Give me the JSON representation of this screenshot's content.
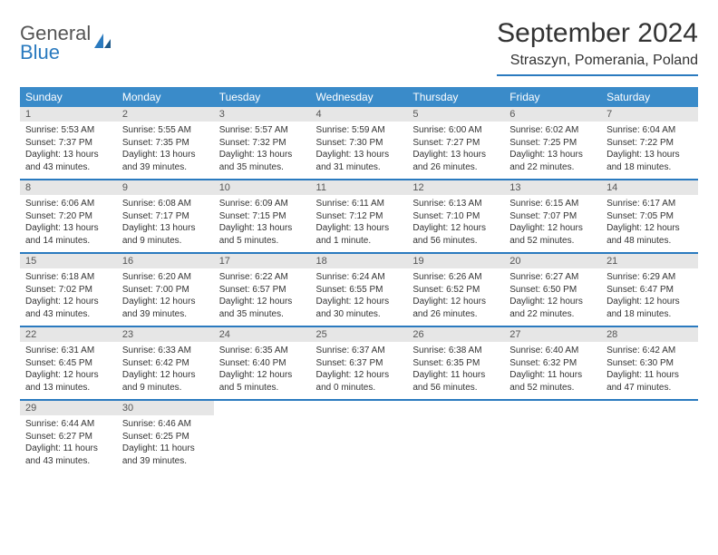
{
  "logo": {
    "general": "General",
    "blue": "Blue"
  },
  "title": "September 2024",
  "location": "Straszyn, Pomerania, Poland",
  "day_headers": [
    "Sunday",
    "Monday",
    "Tuesday",
    "Wednesday",
    "Thursday",
    "Friday",
    "Saturday"
  ],
  "colors": {
    "header_bg": "#3a8bc9",
    "accent": "#2a7abf",
    "daynum_bg": "#e6e6e6",
    "text": "#333333",
    "logo_gray": "#555555"
  },
  "weeks": [
    [
      {
        "day": "1",
        "sunrise": "Sunrise: 5:53 AM",
        "sunset": "Sunset: 7:37 PM",
        "daylight": "Daylight: 13 hours and 43 minutes."
      },
      {
        "day": "2",
        "sunrise": "Sunrise: 5:55 AM",
        "sunset": "Sunset: 7:35 PM",
        "daylight": "Daylight: 13 hours and 39 minutes."
      },
      {
        "day": "3",
        "sunrise": "Sunrise: 5:57 AM",
        "sunset": "Sunset: 7:32 PM",
        "daylight": "Daylight: 13 hours and 35 minutes."
      },
      {
        "day": "4",
        "sunrise": "Sunrise: 5:59 AM",
        "sunset": "Sunset: 7:30 PM",
        "daylight": "Daylight: 13 hours and 31 minutes."
      },
      {
        "day": "5",
        "sunrise": "Sunrise: 6:00 AM",
        "sunset": "Sunset: 7:27 PM",
        "daylight": "Daylight: 13 hours and 26 minutes."
      },
      {
        "day": "6",
        "sunrise": "Sunrise: 6:02 AM",
        "sunset": "Sunset: 7:25 PM",
        "daylight": "Daylight: 13 hours and 22 minutes."
      },
      {
        "day": "7",
        "sunrise": "Sunrise: 6:04 AM",
        "sunset": "Sunset: 7:22 PM",
        "daylight": "Daylight: 13 hours and 18 minutes."
      }
    ],
    [
      {
        "day": "8",
        "sunrise": "Sunrise: 6:06 AM",
        "sunset": "Sunset: 7:20 PM",
        "daylight": "Daylight: 13 hours and 14 minutes."
      },
      {
        "day": "9",
        "sunrise": "Sunrise: 6:08 AM",
        "sunset": "Sunset: 7:17 PM",
        "daylight": "Daylight: 13 hours and 9 minutes."
      },
      {
        "day": "10",
        "sunrise": "Sunrise: 6:09 AM",
        "sunset": "Sunset: 7:15 PM",
        "daylight": "Daylight: 13 hours and 5 minutes."
      },
      {
        "day": "11",
        "sunrise": "Sunrise: 6:11 AM",
        "sunset": "Sunset: 7:12 PM",
        "daylight": "Daylight: 13 hours and 1 minute."
      },
      {
        "day": "12",
        "sunrise": "Sunrise: 6:13 AM",
        "sunset": "Sunset: 7:10 PM",
        "daylight": "Daylight: 12 hours and 56 minutes."
      },
      {
        "day": "13",
        "sunrise": "Sunrise: 6:15 AM",
        "sunset": "Sunset: 7:07 PM",
        "daylight": "Daylight: 12 hours and 52 minutes."
      },
      {
        "day": "14",
        "sunrise": "Sunrise: 6:17 AM",
        "sunset": "Sunset: 7:05 PM",
        "daylight": "Daylight: 12 hours and 48 minutes."
      }
    ],
    [
      {
        "day": "15",
        "sunrise": "Sunrise: 6:18 AM",
        "sunset": "Sunset: 7:02 PM",
        "daylight": "Daylight: 12 hours and 43 minutes."
      },
      {
        "day": "16",
        "sunrise": "Sunrise: 6:20 AM",
        "sunset": "Sunset: 7:00 PM",
        "daylight": "Daylight: 12 hours and 39 minutes."
      },
      {
        "day": "17",
        "sunrise": "Sunrise: 6:22 AM",
        "sunset": "Sunset: 6:57 PM",
        "daylight": "Daylight: 12 hours and 35 minutes."
      },
      {
        "day": "18",
        "sunrise": "Sunrise: 6:24 AM",
        "sunset": "Sunset: 6:55 PM",
        "daylight": "Daylight: 12 hours and 30 minutes."
      },
      {
        "day": "19",
        "sunrise": "Sunrise: 6:26 AM",
        "sunset": "Sunset: 6:52 PM",
        "daylight": "Daylight: 12 hours and 26 minutes."
      },
      {
        "day": "20",
        "sunrise": "Sunrise: 6:27 AM",
        "sunset": "Sunset: 6:50 PM",
        "daylight": "Daylight: 12 hours and 22 minutes."
      },
      {
        "day": "21",
        "sunrise": "Sunrise: 6:29 AM",
        "sunset": "Sunset: 6:47 PM",
        "daylight": "Daylight: 12 hours and 18 minutes."
      }
    ],
    [
      {
        "day": "22",
        "sunrise": "Sunrise: 6:31 AM",
        "sunset": "Sunset: 6:45 PM",
        "daylight": "Daylight: 12 hours and 13 minutes."
      },
      {
        "day": "23",
        "sunrise": "Sunrise: 6:33 AM",
        "sunset": "Sunset: 6:42 PM",
        "daylight": "Daylight: 12 hours and 9 minutes."
      },
      {
        "day": "24",
        "sunrise": "Sunrise: 6:35 AM",
        "sunset": "Sunset: 6:40 PM",
        "daylight": "Daylight: 12 hours and 5 minutes."
      },
      {
        "day": "25",
        "sunrise": "Sunrise: 6:37 AM",
        "sunset": "Sunset: 6:37 PM",
        "daylight": "Daylight: 12 hours and 0 minutes."
      },
      {
        "day": "26",
        "sunrise": "Sunrise: 6:38 AM",
        "sunset": "Sunset: 6:35 PM",
        "daylight": "Daylight: 11 hours and 56 minutes."
      },
      {
        "day": "27",
        "sunrise": "Sunrise: 6:40 AM",
        "sunset": "Sunset: 6:32 PM",
        "daylight": "Daylight: 11 hours and 52 minutes."
      },
      {
        "day": "28",
        "sunrise": "Sunrise: 6:42 AM",
        "sunset": "Sunset: 6:30 PM",
        "daylight": "Daylight: 11 hours and 47 minutes."
      }
    ],
    [
      {
        "day": "29",
        "sunrise": "Sunrise: 6:44 AM",
        "sunset": "Sunset: 6:27 PM",
        "daylight": "Daylight: 11 hours and 43 minutes."
      },
      {
        "day": "30",
        "sunrise": "Sunrise: 6:46 AM",
        "sunset": "Sunset: 6:25 PM",
        "daylight": "Daylight: 11 hours and 39 minutes."
      },
      null,
      null,
      null,
      null,
      null
    ]
  ]
}
